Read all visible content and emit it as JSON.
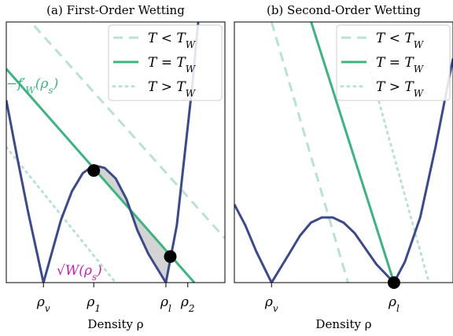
{
  "chart_data": [
    {
      "type": "line",
      "title": "(a) First-Order Wetting",
      "xlabel": "Density ρ",
      "xticks": [
        {
          "key": "rv",
          "label": "ρ_v",
          "x": 0.17
        },
        {
          "key": "r1",
          "label": "ρ_1",
          "x": 0.4
        },
        {
          "key": "rl",
          "label": "ρ_l",
          "x": 0.73
        },
        {
          "key": "r2",
          "label": "ρ_2",
          "x": 0.83
        }
      ],
      "xlim": [
        0,
        1
      ],
      "ylim": [
        0,
        1
      ],
      "legend": {
        "placement": "top-right",
        "entries": [
          {
            "label": "T < T_W",
            "style": "dashed"
          },
          {
            "label": "T = T_W",
            "style": "solid"
          },
          {
            "label": "T > T_W",
            "style": "dotted"
          }
        ]
      },
      "annotations": [
        "−f′_W(ρ_s)",
        "√W(ρ_s)"
      ],
      "series": [
        {
          "label": "√W(ρ_s)",
          "kind": "curve",
          "x": [
            0,
            0.05,
            0.1,
            0.17,
            0.25,
            0.3,
            0.35,
            0.4,
            0.45,
            0.5,
            0.55,
            0.6,
            0.65,
            0.73,
            0.78,
            0.85,
            0.88
          ],
          "y": [
            0.7,
            0.48,
            0.27,
            0,
            0.24,
            0.35,
            0.42,
            0.45,
            0.44,
            0.4,
            0.32,
            0.2,
            0.11,
            0,
            0.22,
            0.75,
            1.02
          ]
        },
        {
          "label": "T < T_W",
          "kind": "line",
          "x": [
            0.08,
            1.0
          ],
          "y": [
            1.03,
            0.17
          ]
        },
        {
          "label": "T = T_W",
          "kind": "line",
          "x": [
            0.0,
            0.86
          ],
          "y": [
            0.82,
            0.0
          ]
        },
        {
          "label": "T > T_W",
          "kind": "line",
          "x": [
            0.0,
            0.5
          ],
          "y": [
            0.52,
            0.0
          ]
        }
      ],
      "points": [
        {
          "x": 0.4,
          "y": 0.43
        },
        {
          "x": 0.75,
          "y": 0.1
        }
      ],
      "shaded_between": {
        "x_from": 0.4,
        "x_to": 0.75
      }
    },
    {
      "type": "line",
      "title": "(b) Second-Order Wetting",
      "xlabel": "Density ρ",
      "xticks": [
        {
          "key": "rv",
          "label": "ρ_v",
          "x": 0.17
        },
        {
          "key": "rl",
          "label": "ρ_l",
          "x": 0.73
        }
      ],
      "xlim": [
        0,
        1
      ],
      "ylim": [
        0,
        1
      ],
      "legend": {
        "placement": "top-right",
        "entries": [
          {
            "label": "T < T_W",
            "style": "dashed"
          },
          {
            "label": "T = T_W",
            "style": "solid"
          },
          {
            "label": "T > T_W",
            "style": "dotted"
          }
        ]
      },
      "series": [
        {
          "label": "√W(ρ_s)",
          "kind": "curve",
          "x": [
            0,
            0.05,
            0.1,
            0.17,
            0.25,
            0.3,
            0.35,
            0.4,
            0.45,
            0.5,
            0.55,
            0.6,
            0.65,
            0.73,
            0.78,
            0.85,
            0.92,
            1.0
          ],
          "y": [
            0.3,
            0.22,
            0.12,
            0,
            0.11,
            0.18,
            0.23,
            0.25,
            0.25,
            0.23,
            0.19,
            0.13,
            0.07,
            0,
            0.08,
            0.25,
            0.52,
            0.86
          ]
        },
        {
          "label": "T < T_W",
          "kind": "line",
          "x": [
            0.17,
            0.52
          ],
          "y": [
            1.0,
            0.0
          ]
        },
        {
          "label": "T = T_W",
          "kind": "line",
          "x": [
            0.34,
            0.73
          ],
          "y": [
            1.03,
            0.0
          ]
        },
        {
          "label": "T > T_W",
          "kind": "line",
          "x": [
            0.6,
            0.89
          ],
          "y": [
            0.88,
            0.0
          ]
        }
      ],
      "points": [
        {
          "x": 0.73,
          "y": 0.0
        }
      ]
    }
  ]
}
